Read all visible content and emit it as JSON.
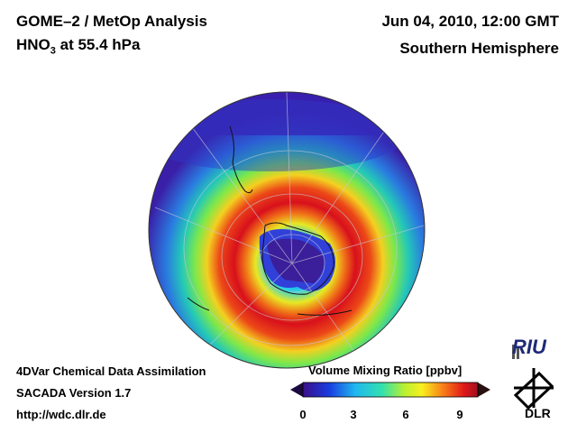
{
  "header": {
    "title_line1": "GOME–2 / MetOp Analysis",
    "title_line2_prefix": "HNO",
    "title_line2_sub": "3",
    "title_line2_suffix": " at 55.4 hPa",
    "date": "Jun 04, 2010, 12:00 GMT",
    "region": "Southern Hemisphere"
  },
  "footer": {
    "line1": "4DVar Chemical Data Assimilation",
    "line2": "SACADA Version 1.7",
    "line3": "http://wdc.dlr.de"
  },
  "colorbar": {
    "label": "Volume Mixing Ratio [ppbv]",
    "ticks": [
      "0",
      "3",
      "6",
      "9"
    ],
    "range": [
      0,
      10
    ]
  },
  "logos": {
    "riu": "RIU",
    "dlr": "DLR"
  },
  "colors": {
    "low": "#3a1fa8",
    "mid": "#29c7a0",
    "high": "#d8101c"
  }
}
